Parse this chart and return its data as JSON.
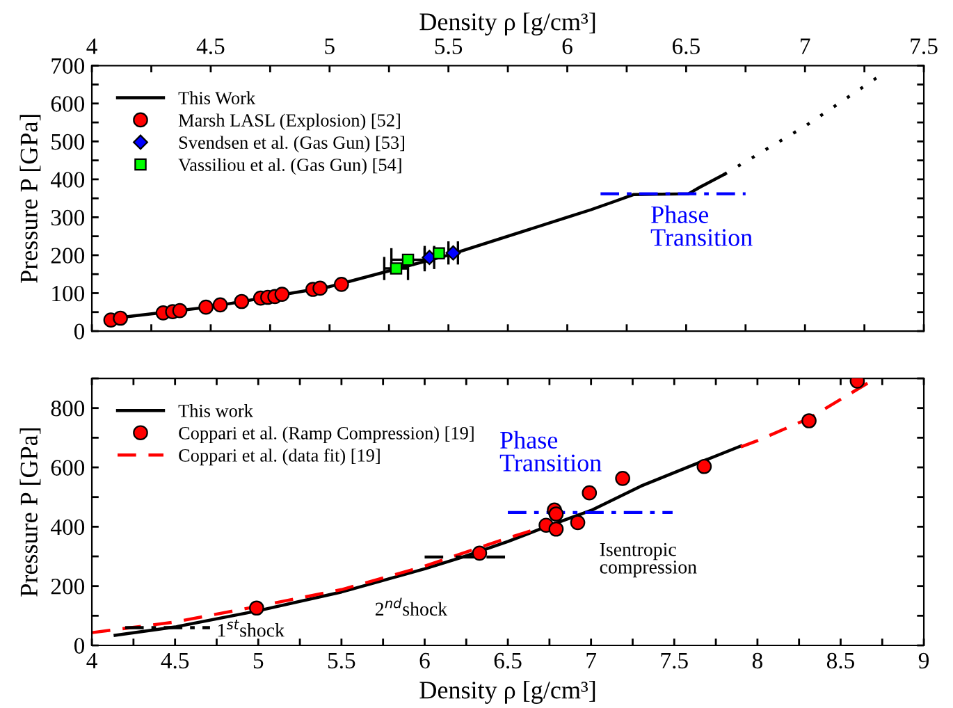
{
  "chart_data": [
    {
      "type": "line",
      "xlabel": "Density ρ [g/cm³]",
      "ylabel": "Pressure P [GPa]",
      "xlim": [
        4,
        7.5
      ],
      "xticks": [
        4,
        {
          "value": 4.25,
          "label": null
        },
        4.5,
        {
          "value": 4.75,
          "label": null
        },
        5,
        {
          "value": 5.25,
          "label": null
        },
        5.5,
        {
          "value": 5.75,
          "label": null
        },
        6,
        {
          "value": 6.25,
          "label": null
        },
        6.5,
        {
          "value": 6.75,
          "label": null
        },
        7,
        {
          "value": 7.25,
          "label": null
        },
        7.5
      ],
      "ylim": [
        0,
        700
      ],
      "yticks": [
        0,
        {
          "value": 50,
          "label": null
        },
        100,
        {
          "value": 150,
          "label": null
        },
        200,
        {
          "value": 250,
          "label": null
        },
        300,
        {
          "value": 350,
          "label": null
        },
        400,
        {
          "value": 450,
          "label": null
        },
        500,
        {
          "value": 550,
          "label": null
        },
        600,
        {
          "value": 650,
          "label": null
        },
        700
      ],
      "grid": false,
      "legend": "top left",
      "series": [
        {
          "name": "This Work",
          "color": "#000000",
          "line_style": "solid",
          "x": [
            4.07,
            4.5,
            5.0,
            5.5,
            6.0,
            6.1,
            6.2,
            6.28,
            6.51,
            6.56,
            6.66
          ],
          "values": [
            32,
            64,
            117,
            200,
            300,
            320,
            342,
            360,
            362,
            380,
            413
          ]
        },
        {
          "color": "#000000",
          "line_style": "dotted",
          "x": [
            6.66,
            7.0,
            7.3
          ],
          "values": [
            413,
            540,
            667
          ]
        },
        {
          "name": "Phase\nTransition",
          "color": "#0000ff",
          "line_style": "dashdot",
          "x": [
            6.14,
            6.75
          ],
          "values": [
            362,
            362
          ]
        },
        {
          "name": "Marsh LASL (Explosion) [52]",
          "type": "scatter",
          "marker": "circle",
          "color": "#ff0000",
          "x": [
            4.08,
            4.12,
            4.3,
            4.34,
            4.37,
            4.48,
            4.54,
            4.63,
            4.71,
            4.74,
            4.77,
            4.8,
            4.93,
            4.96,
            5.05
          ],
          "values": [
            29,
            34,
            48,
            51,
            54,
            63,
            69,
            78,
            87,
            89,
            91,
            97,
            110,
            113,
            123
          ]
        },
        {
          "name": "Svendsen et al. (Gas Gun) [53]",
          "type": "scatter",
          "marker": "diamond",
          "color": "#0000ff",
          "x": [
            5.42,
            5.52
          ],
          "values": [
            194,
            206
          ],
          "xerrors": [
            0.02,
            0.02
          ]
        },
        {
          "name": "Vassiliou et al. (Gas Gun) [54]",
          "type": "scatter",
          "marker": "square",
          "color": "#00ff00",
          "x": [
            5.28,
            5.33,
            5.46
          ],
          "values": [
            165,
            188,
            205
          ],
          "xerrors": [
            0.05,
            0.07,
            null
          ]
        }
      ]
    },
    {
      "type": "line",
      "xlabel": "Density ρ [g/cm³]",
      "ylabel": "Pressure P [GPa]",
      "xlim": [
        4,
        9
      ],
      "xticks": [
        4,
        {
          "value": 4.25,
          "label": null
        },
        4.5,
        {
          "value": 4.75,
          "label": null
        },
        5,
        {
          "value": 5.25,
          "label": null
        },
        5.5,
        {
          "value": 5.75,
          "label": null
        },
        6,
        {
          "value": 6.25,
          "label": null
        },
        6.5,
        {
          "value": 6.75,
          "label": null
        },
        7,
        {
          "value": 7.25,
          "label": null
        },
        7.5,
        {
          "value": 7.75,
          "label": null
        },
        8,
        {
          "value": 8.25,
          "label": null
        },
        8.5,
        {
          "value": 8.75,
          "label": null
        },
        9
      ],
      "ylim": [
        0,
        900
      ],
      "yticks": [
        0,
        {
          "value": 100,
          "label": null
        },
        200,
        {
          "value": 300,
          "label": null
        },
        400,
        {
          "value": 500,
          "label": null
        },
        600,
        {
          "value": 700,
          "label": null
        },
        800,
        {
          "value": 900,
          "label": null
        }
      ],
      "grid": false,
      "legend": "top left",
      "series": [
        {
          "name": "This work",
          "color": "#000000",
          "line_style": "solid",
          "x": [
            4.14,
            4.5,
            5.0,
            5.5,
            6.0,
            6.23,
            6.5,
            6.73,
            7.0,
            7.3,
            7.6,
            7.9
          ],
          "values": [
            34,
            62,
            117,
            180,
            258,
            298,
            350,
            400,
            455,
            537,
            605,
            672
          ]
        },
        {
          "name": "Coppari et al. (Ramp Compression) [19]",
          "type": "scatter",
          "marker": "circle",
          "color": "#ff0000",
          "x": [
            4.99,
            6.33,
            6.73,
            6.78,
            6.79,
            6.79,
            6.92,
            6.99,
            7.19,
            7.68,
            8.31,
            8.6
          ],
          "values": [
            126,
            311,
            405,
            456,
            443,
            392,
            414,
            514,
            563,
            603,
            757,
            891
          ]
        },
        {
          "name": "Coppari et al. (data fit) [19]",
          "color": "#ff0000",
          "line_style": "dashed",
          "x": [
            4.0,
            4.5,
            5.0,
            5.5,
            6.0,
            6.5,
            6.8,
            7.25,
            7.9,
            8.0,
            8.31,
            8.71
          ],
          "values": [
            43,
            79,
            132,
            188,
            267,
            362,
            414,
            null,
            669,
            690,
            765,
            900
          ]
        },
        {
          "name": "Phase\nTransition",
          "color": "#0000ff",
          "line_style": "dashdot",
          "x": [
            6.5,
            7.49
          ],
          "values": [
            448,
            448
          ]
        },
        {
          "color": "#000000",
          "line_style": "dashed",
          "x": [
            6.0,
            6.5
          ],
          "values": [
            298,
            298
          ]
        },
        {
          "color": "#000000",
          "line_style": "dashdot",
          "x": [
            4.2,
            4.71
          ],
          "values": [
            60,
            60
          ]
        }
      ],
      "annotations": [
        "Isentropic\ncompression",
        "2$^{nd}$shock",
        "1$^{st}$shock"
      ]
    }
  ]
}
